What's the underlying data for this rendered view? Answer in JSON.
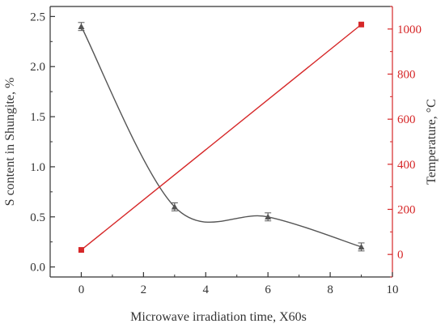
{
  "chart_data": {
    "type": "line",
    "xlabel": "Microwave irradiation time, X60s",
    "ylabel_left": "S content in Shungite, %",
    "ylabel_right": "Temperature, °C",
    "xlim": [
      -1,
      10
    ],
    "ylim_left": [
      -0.1,
      2.6
    ],
    "ylim_right": [
      -100,
      1100
    ],
    "x_ticks": [
      0,
      2,
      4,
      6,
      8,
      10
    ],
    "y_ticks_left": [
      0.0,
      0.5,
      1.0,
      1.5,
      2.0,
      2.5
    ],
    "y_ticks_right": [
      0,
      200,
      400,
      600,
      800,
      1000
    ],
    "x_tick_labels": [
      "0",
      "2",
      "4",
      "6",
      "8",
      "10"
    ],
    "y_tick_labels_left": [
      "0.0",
      "0.5",
      "1.0",
      "1.5",
      "2.0",
      "2.5"
    ],
    "y_tick_labels_right": [
      "0",
      "200",
      "400",
      "600",
      "800",
      "1000"
    ],
    "grid": false,
    "series": [
      {
        "axis": "left",
        "marker": "triangle",
        "smooth": true,
        "color": "#555555",
        "x": [
          0,
          3,
          6,
          9
        ],
        "values": [
          2.4,
          0.6,
          0.5,
          0.2
        ],
        "errors": [
          0.04,
          0.04,
          0.04,
          0.04
        ]
      },
      {
        "axis": "right",
        "marker": "square",
        "smooth": false,
        "color": "#d62728",
        "x": [
          0,
          9
        ],
        "values": [
          20,
          1020
        ]
      }
    ],
    "colors": {
      "left_axis": "#333333",
      "right_axis": "#d62728"
    }
  }
}
